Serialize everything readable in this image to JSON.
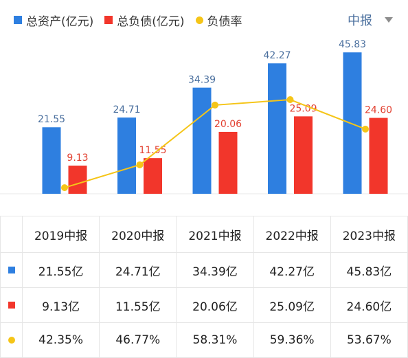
{
  "colors": {
    "assets": "#2e7fe0",
    "liabilities": "#f2362b",
    "ratio": "#f5c518",
    "assets_label": "#4a6f9e",
    "liabilities_label": "#e24030"
  },
  "legend": {
    "assets": "总资产(亿元)",
    "liabilities": "总负债(亿元)",
    "ratio": "负债率"
  },
  "period_selector": {
    "label": "中报",
    "icon": "caret-down-icon"
  },
  "chart_data": {
    "type": "bar",
    "categories": [
      "2019中报",
      "2020中报",
      "2021中报",
      "2022中报",
      "2023中报"
    ],
    "series": [
      {
        "name": "总资产(亿元)",
        "type": "bar",
        "values": [
          21.55,
          24.71,
          34.39,
          42.27,
          45.83
        ],
        "labels": [
          "21.55",
          "24.71",
          "34.39",
          "42.27",
          "45.83"
        ]
      },
      {
        "name": "总负债(亿元)",
        "type": "bar",
        "values": [
          9.13,
          11.55,
          20.06,
          25.09,
          24.6
        ],
        "labels": [
          "9.13",
          "11.55",
          "20.06",
          "25.09",
          "24.60"
        ]
      },
      {
        "name": "负债率",
        "type": "line",
        "values": [
          42.35,
          46.77,
          58.31,
          59.36,
          53.67
        ],
        "unit": "%"
      }
    ],
    "grid": false,
    "legend_position": "top-left"
  },
  "table": {
    "headers": [
      "2019中报",
      "2020中报",
      "2021中报",
      "2022中报",
      "2023中报"
    ],
    "rows": [
      {
        "marker": "square",
        "color_key": "assets",
        "cells": [
          "21.55亿",
          "24.71亿",
          "34.39亿",
          "42.27亿",
          "45.83亿"
        ]
      },
      {
        "marker": "square",
        "color_key": "liabilities",
        "cells": [
          "9.13亿",
          "11.55亿",
          "20.06亿",
          "25.09亿",
          "24.60亿"
        ]
      },
      {
        "marker": "dot",
        "color_key": "ratio",
        "cells": [
          "42.35%",
          "46.77%",
          "58.31%",
          "59.36%",
          "53.67%"
        ]
      }
    ]
  }
}
